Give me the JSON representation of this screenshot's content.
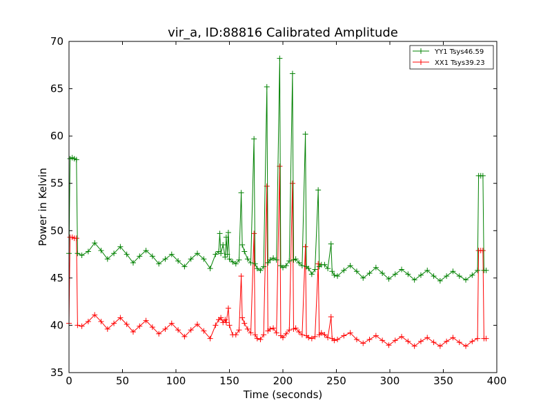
{
  "chart_data": {
    "type": "line",
    "title": "vir_a, ID:88816 Calibrated Amplitude",
    "xlabel": "Time (seconds)",
    "ylabel": "Power in Kelvin",
    "xlim": [
      0,
      400
    ],
    "ylim": [
      35,
      70
    ],
    "xticks": [
      0,
      50,
      100,
      150,
      200,
      250,
      300,
      350,
      400
    ],
    "yticks": [
      35,
      40,
      45,
      50,
      55,
      60,
      65,
      70
    ],
    "grid": false,
    "legend_position": "top-right",
    "marker": "+",
    "series": [
      {
        "name": "YY1 Tsys46.59",
        "color": "#008000",
        "points": [
          [
            0,
            47.6
          ],
          [
            1,
            57.6
          ],
          [
            3,
            57.7
          ],
          [
            5,
            57.6
          ],
          [
            7,
            57.5
          ],
          [
            8,
            47.6
          ],
          [
            12,
            47.4
          ],
          [
            18,
            47.8
          ],
          [
            24,
            48.7
          ],
          [
            30,
            47.9
          ],
          [
            36,
            47.0
          ],
          [
            42,
            47.6
          ],
          [
            48,
            48.3
          ],
          [
            54,
            47.5
          ],
          [
            60,
            46.6
          ],
          [
            66,
            47.3
          ],
          [
            72,
            47.9
          ],
          [
            78,
            47.3
          ],
          [
            84,
            46.5
          ],
          [
            90,
            47.0
          ],
          [
            96,
            47.5
          ],
          [
            102,
            46.8
          ],
          [
            108,
            46.2
          ],
          [
            114,
            47.0
          ],
          [
            120,
            47.6
          ],
          [
            126,
            47.0
          ],
          [
            132,
            46.0
          ],
          [
            137,
            47.5
          ],
          [
            140,
            47.8
          ],
          [
            141,
            49.7
          ],
          [
            142,
            47.6
          ],
          [
            144,
            48.5
          ],
          [
            146,
            47.2
          ],
          [
            147,
            49.3
          ],
          [
            148,
            47.5
          ],
          [
            149,
            49.8
          ],
          [
            150,
            47.0
          ],
          [
            153,
            46.7
          ],
          [
            156,
            46.5
          ],
          [
            159,
            46.9
          ],
          [
            161,
            54.0
          ],
          [
            162,
            48.5
          ],
          [
            164,
            47.8
          ],
          [
            167,
            47.0
          ],
          [
            170,
            46.6
          ],
          [
            173,
            59.7
          ],
          [
            174,
            46.5
          ],
          [
            176,
            46.0
          ],
          [
            179,
            45.8
          ],
          [
            182,
            46.2
          ],
          [
            185,
            65.2
          ],
          [
            186,
            46.6
          ],
          [
            188,
            46.9
          ],
          [
            191,
            47.1
          ],
          [
            194,
            46.9
          ],
          [
            197,
            68.2
          ],
          [
            198,
            46.3
          ],
          [
            200,
            46.1
          ],
          [
            203,
            46.3
          ],
          [
            206,
            46.8
          ],
          [
            209,
            66.6
          ],
          [
            210,
            46.9
          ],
          [
            212,
            47.0
          ],
          [
            215,
            46.6
          ],
          [
            218,
            46.3
          ],
          [
            221,
            60.2
          ],
          [
            222,
            46.2
          ],
          [
            224,
            46.0
          ],
          [
            227,
            45.4
          ],
          [
            230,
            45.9
          ],
          [
            233,
            54.3
          ],
          [
            234,
            46.2
          ],
          [
            236,
            46.4
          ],
          [
            239,
            46.4
          ],
          [
            242,
            46.0
          ],
          [
            245,
            48.6
          ],
          [
            246,
            45.7
          ],
          [
            248,
            45.3
          ],
          [
            251,
            45.2
          ],
          [
            257,
            45.8
          ],
          [
            263,
            46.3
          ],
          [
            269,
            45.7
          ],
          [
            275,
            45.0
          ],
          [
            281,
            45.5
          ],
          [
            287,
            46.1
          ],
          [
            293,
            45.5
          ],
          [
            299,
            44.9
          ],
          [
            305,
            45.4
          ],
          [
            311,
            45.9
          ],
          [
            317,
            45.4
          ],
          [
            323,
            44.8
          ],
          [
            329,
            45.3
          ],
          [
            335,
            45.8
          ],
          [
            341,
            45.2
          ],
          [
            347,
            44.7
          ],
          [
            353,
            45.2
          ],
          [
            359,
            45.7
          ],
          [
            365,
            45.2
          ],
          [
            371,
            44.8
          ],
          [
            377,
            45.3
          ],
          [
            382,
            45.8
          ],
          [
            383,
            55.8
          ],
          [
            385,
            55.8
          ],
          [
            387,
            55.8
          ],
          [
            388,
            45.8
          ],
          [
            390,
            45.8
          ]
        ]
      },
      {
        "name": "XX1 Tsys39.23",
        "color": "#ff0000",
        "points": [
          [
            0,
            40.2
          ],
          [
            1,
            49.3
          ],
          [
            3,
            49.3
          ],
          [
            5,
            49.2
          ],
          [
            7,
            49.2
          ],
          [
            8,
            40.0
          ],
          [
            12,
            39.9
          ],
          [
            18,
            40.4
          ],
          [
            24,
            41.1
          ],
          [
            30,
            40.4
          ],
          [
            36,
            39.6
          ],
          [
            42,
            40.2
          ],
          [
            48,
            40.8
          ],
          [
            54,
            40.1
          ],
          [
            60,
            39.3
          ],
          [
            66,
            39.9
          ],
          [
            72,
            40.5
          ],
          [
            78,
            39.8
          ],
          [
            84,
            39.1
          ],
          [
            90,
            39.6
          ],
          [
            96,
            40.2
          ],
          [
            102,
            39.5
          ],
          [
            108,
            38.8
          ],
          [
            114,
            39.5
          ],
          [
            120,
            40.1
          ],
          [
            126,
            39.4
          ],
          [
            132,
            38.6
          ],
          [
            137,
            40.0
          ],
          [
            140,
            40.6
          ],
          [
            142,
            40.8
          ],
          [
            144,
            40.3
          ],
          [
            146,
            40.6
          ],
          [
            147,
            40.3
          ],
          [
            149,
            41.8
          ],
          [
            150,
            40.0
          ],
          [
            153,
            39.0
          ],
          [
            156,
            39.0
          ],
          [
            159,
            39.5
          ],
          [
            161,
            45.2
          ],
          [
            162,
            40.8
          ],
          [
            164,
            40.2
          ],
          [
            167,
            39.6
          ],
          [
            170,
            39.2
          ],
          [
            173,
            49.7
          ],
          [
            174,
            39.0
          ],
          [
            176,
            38.6
          ],
          [
            179,
            38.5
          ],
          [
            182,
            39.0
          ],
          [
            185,
            54.7
          ],
          [
            186,
            39.4
          ],
          [
            188,
            39.6
          ],
          [
            191,
            39.7
          ],
          [
            194,
            39.2
          ],
          [
            197,
            56.8
          ],
          [
            198,
            38.9
          ],
          [
            200,
            38.7
          ],
          [
            203,
            39.1
          ],
          [
            206,
            39.5
          ],
          [
            209,
            55.0
          ],
          [
            210,
            39.6
          ],
          [
            212,
            39.7
          ],
          [
            215,
            39.3
          ],
          [
            218,
            39.0
          ],
          [
            221,
            48.3
          ],
          [
            222,
            38.9
          ],
          [
            224,
            38.7
          ],
          [
            227,
            38.6
          ],
          [
            230,
            38.8
          ],
          [
            233,
            46.5
          ],
          [
            234,
            39.0
          ],
          [
            236,
            39.2
          ],
          [
            239,
            39.0
          ],
          [
            242,
            38.7
          ],
          [
            245,
            40.9
          ],
          [
            246,
            38.6
          ],
          [
            248,
            38.4
          ],
          [
            251,
            38.5
          ],
          [
            257,
            38.9
          ],
          [
            263,
            39.2
          ],
          [
            269,
            38.5
          ],
          [
            275,
            38.1
          ],
          [
            281,
            38.5
          ],
          [
            287,
            38.9
          ],
          [
            293,
            38.4
          ],
          [
            299,
            37.9
          ],
          [
            305,
            38.4
          ],
          [
            311,
            38.8
          ],
          [
            317,
            38.3
          ],
          [
            323,
            37.8
          ],
          [
            329,
            38.3
          ],
          [
            335,
            38.7
          ],
          [
            341,
            38.2
          ],
          [
            347,
            37.8
          ],
          [
            353,
            38.3
          ],
          [
            359,
            38.7
          ],
          [
            365,
            38.2
          ],
          [
            371,
            37.8
          ],
          [
            377,
            38.3
          ],
          [
            382,
            38.6
          ],
          [
            383,
            47.9
          ],
          [
            385,
            47.9
          ],
          [
            387,
            47.9
          ],
          [
            388,
            38.6
          ],
          [
            390,
            38.6
          ]
        ]
      }
    ]
  }
}
